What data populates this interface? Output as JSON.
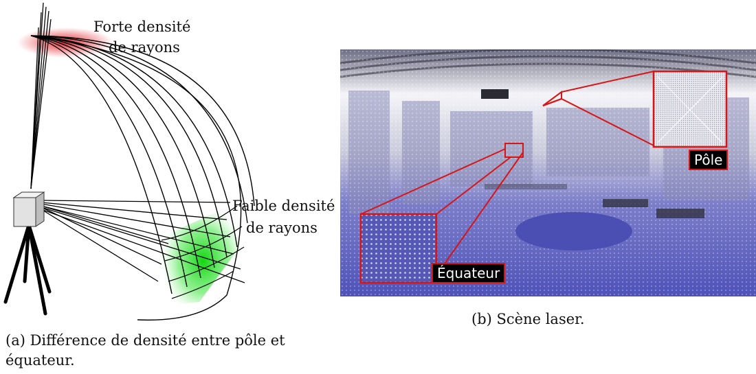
{
  "figure_a": {
    "label_top_line1": "Forte densité",
    "label_top_line2": "de rayons",
    "label_side_line1": "Faible densité",
    "label_side_line2": "de rayons",
    "caption": "(a) Différence de densité entre pôle et équateur.",
    "colors": {
      "high_density": "#e31b23",
      "low_density": "#1ee01e",
      "rays": "#000000",
      "scanner_body": "#d3d3d3"
    }
  },
  "figure_b": {
    "label_pole": "Pôle",
    "label_equator": "Équateur",
    "caption": "(b) Scène laser.",
    "colors": {
      "scene_floor": "#5d5fc2",
      "scene_light": "#ececf2",
      "zoom_frame": "#d81414",
      "tag_bg": "#000000"
    }
  }
}
